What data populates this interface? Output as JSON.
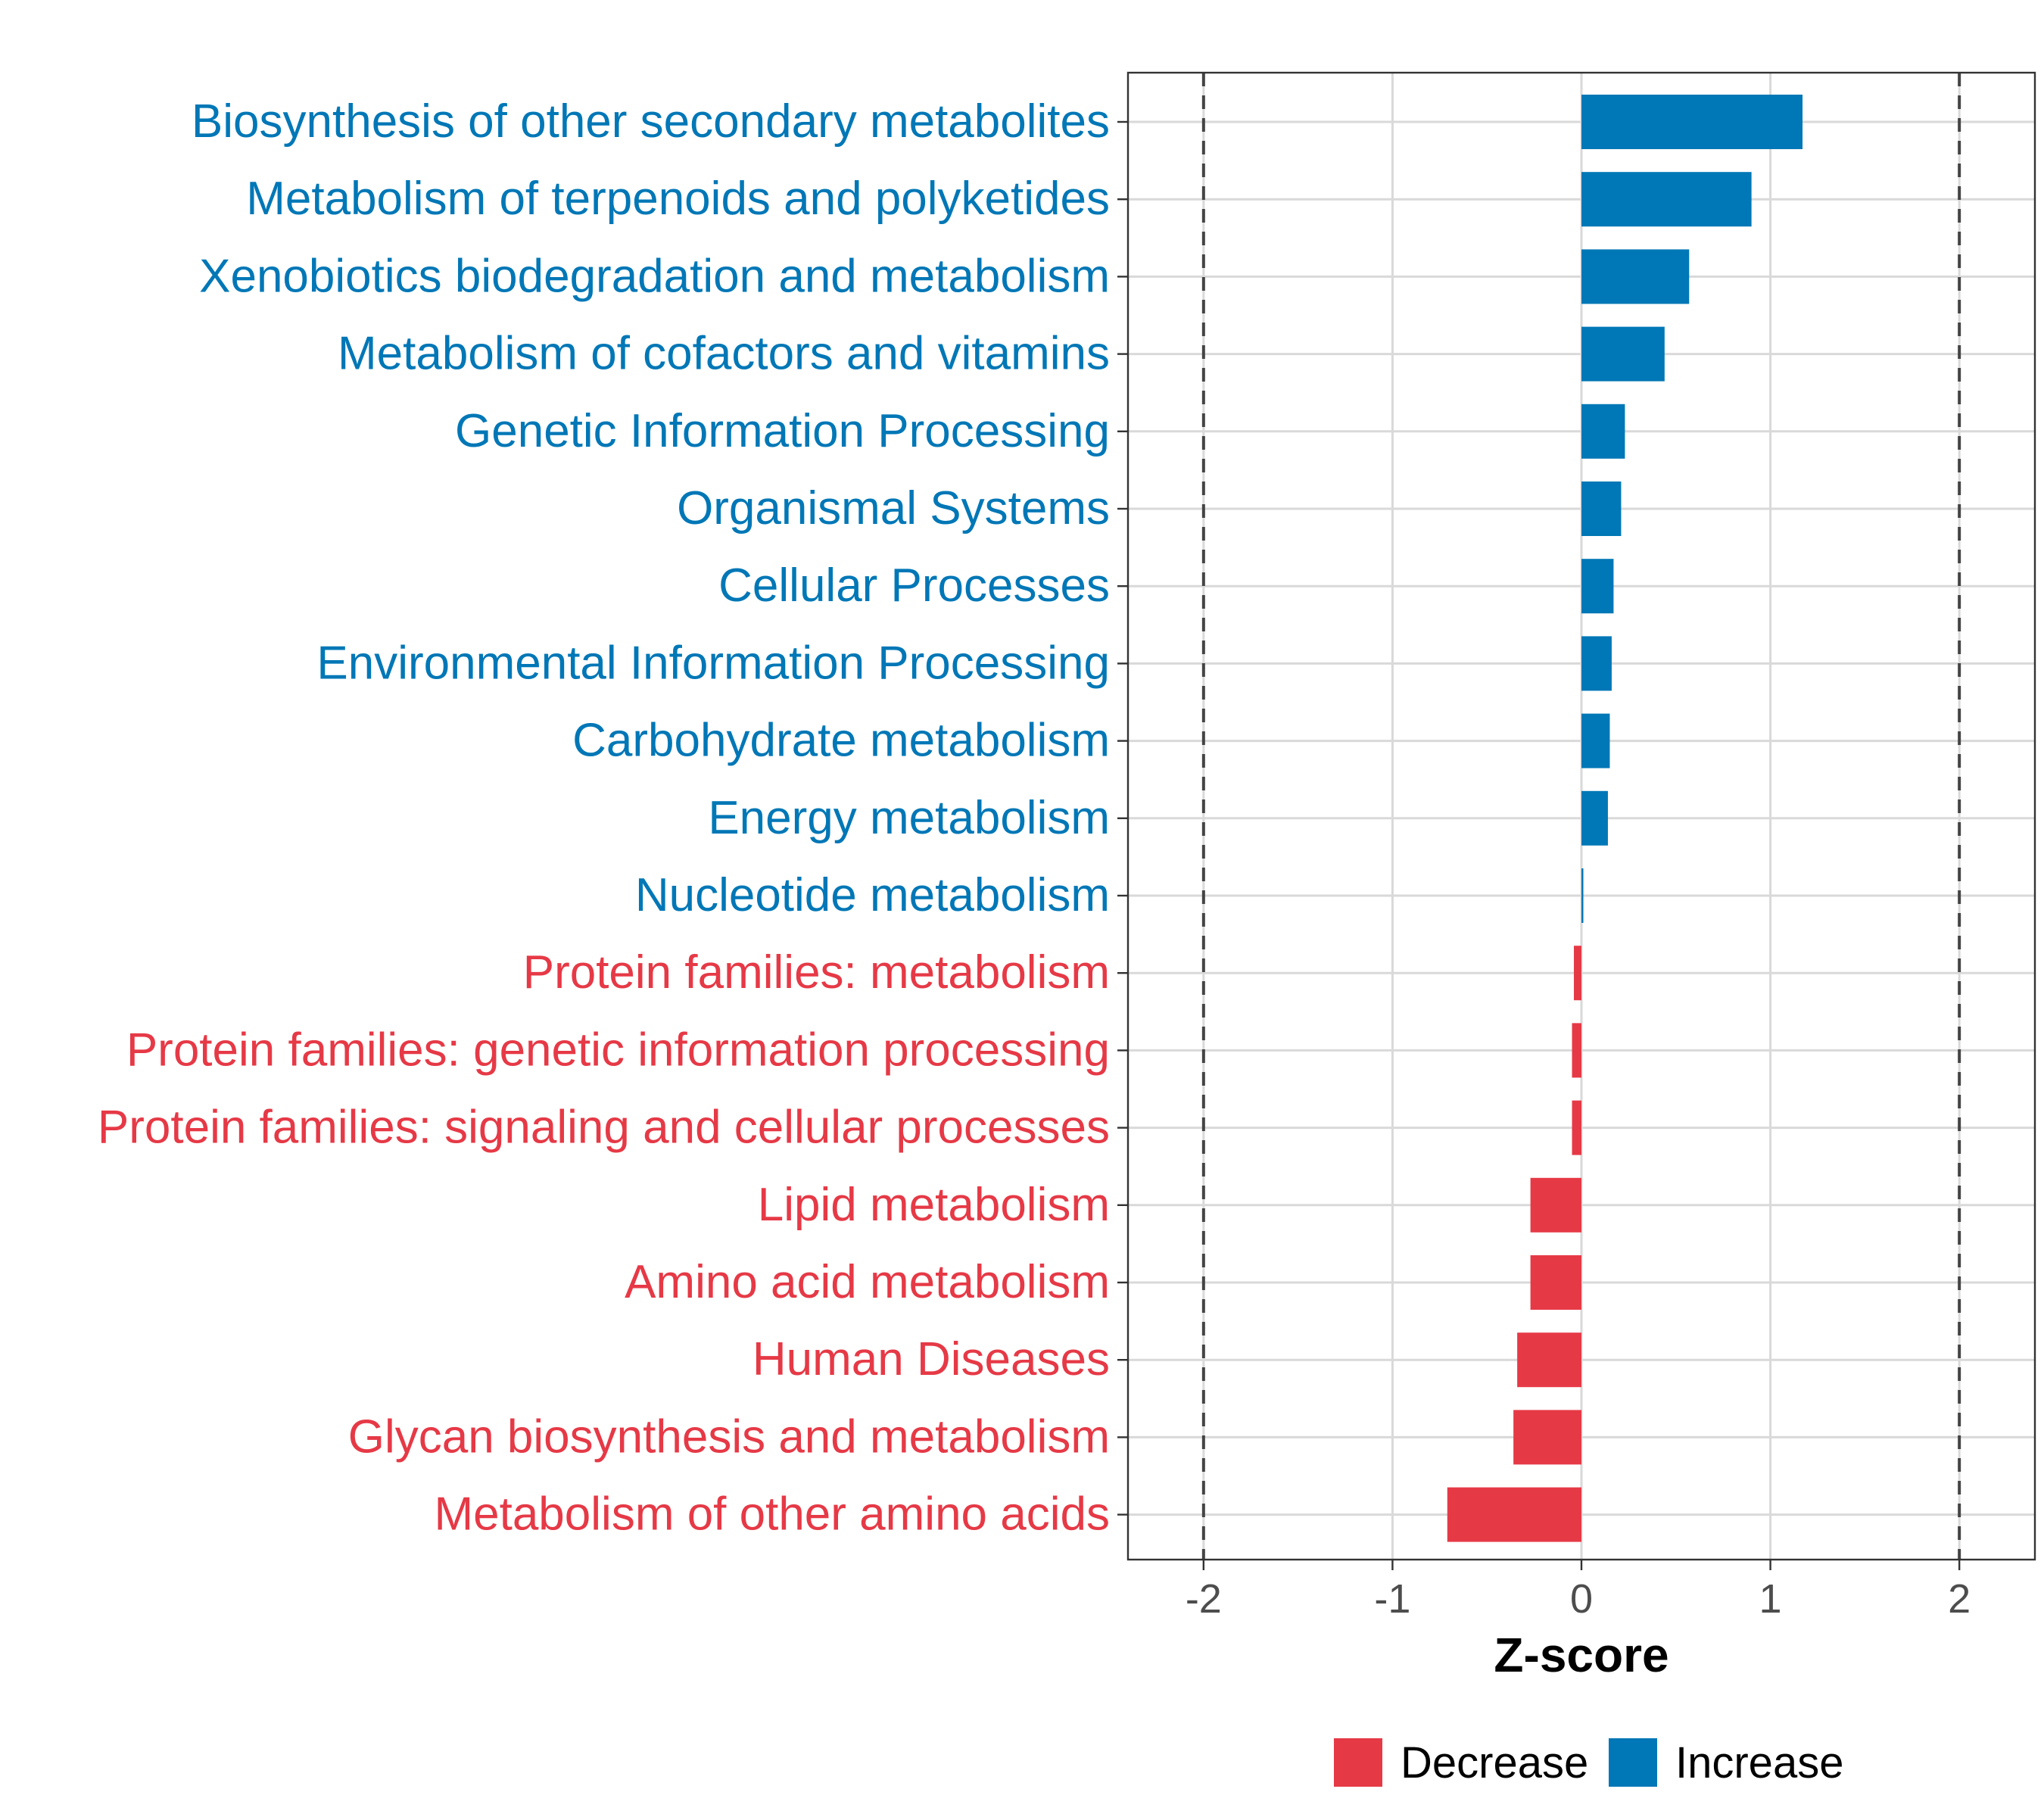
{
  "chart_data": {
    "type": "bar",
    "orientation": "horizontal",
    "xlabel": "Z-score",
    "ylabel": "",
    "xlim": [
      -2.4,
      2.4
    ],
    "x_ticks": [
      -2,
      -1,
      0,
      1,
      2
    ],
    "x_tick_labels": [
      "-2",
      "-1",
      "0",
      "1",
      "2"
    ],
    "reference_lines": [
      -2,
      2
    ],
    "grid": true,
    "legend_position": "bottom",
    "colors": {
      "Decrease": "#e63946",
      "Increase": "#0077b6"
    },
    "legend": [
      {
        "label": "Decrease",
        "color": "#e63946"
      },
      {
        "label": "Increase",
        "color": "#0077b6"
      }
    ],
    "categories": [
      "Biosynthesis of other secondary metabolites",
      "Metabolism of terpenoids and polyketides",
      "Xenobiotics biodegradation and metabolism",
      "Metabolism of cofactors and vitamins",
      "Genetic Information Processing",
      "Organismal Systems",
      "Cellular Processes",
      "Environmental Information Processing",
      "Carbohydrate metabolism",
      "Energy metabolism",
      "Nucleotide metabolism",
      "Protein families: metabolism",
      "Protein families: genetic information processing",
      "Protein families: signaling and cellular processes",
      "Lipid metabolism",
      "Amino acid metabolism",
      "Human Diseases",
      "Glycan biosynthesis and metabolism",
      "Metabolism of other amino acids"
    ],
    "values": [
      1.17,
      0.9,
      0.57,
      0.44,
      0.23,
      0.21,
      0.17,
      0.16,
      0.15,
      0.14,
      0.01,
      -0.04,
      -0.05,
      -0.05,
      -0.27,
      -0.27,
      -0.34,
      -0.36,
      -0.71
    ],
    "groups": [
      "Increase",
      "Increase",
      "Increase",
      "Increase",
      "Increase",
      "Increase",
      "Increase",
      "Increase",
      "Increase",
      "Increase",
      "Increase",
      "Decrease",
      "Decrease",
      "Decrease",
      "Decrease",
      "Decrease",
      "Decrease",
      "Decrease",
      "Decrease"
    ]
  }
}
